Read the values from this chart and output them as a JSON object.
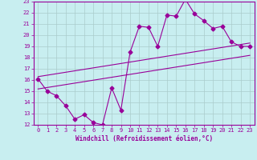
{
  "xlabel": "Windchill (Refroidissement éolien,°C)",
  "bg_color": "#c8eef0",
  "line_color": "#990099",
  "grid_color": "#aacccc",
  "xlim": [
    -0.5,
    23.5
  ],
  "ylim": [
    12,
    23
  ],
  "xticks": [
    0,
    1,
    2,
    3,
    4,
    5,
    6,
    7,
    8,
    9,
    10,
    11,
    12,
    13,
    14,
    15,
    16,
    17,
    18,
    19,
    20,
    21,
    22,
    23
  ],
  "yticks": [
    12,
    13,
    14,
    15,
    16,
    17,
    18,
    19,
    20,
    21,
    22,
    23
  ],
  "main_line": {
    "x": [
      0,
      1,
      2,
      3,
      4,
      5,
      6,
      7,
      8,
      9,
      10,
      11,
      12,
      13,
      14,
      15,
      16,
      17,
      18,
      19,
      20,
      21,
      22,
      23
    ],
    "y": [
      16.1,
      15.0,
      14.6,
      13.7,
      12.5,
      12.9,
      12.2,
      12.0,
      15.3,
      13.3,
      18.5,
      20.8,
      20.7,
      19.0,
      21.8,
      21.7,
      23.2,
      21.9,
      21.3,
      20.6,
      20.8,
      19.4,
      19.0,
      19.0
    ]
  },
  "lower_trend": {
    "x": [
      0,
      23
    ],
    "y": [
      15.2,
      18.2
    ]
  },
  "upper_trend": {
    "x": [
      0,
      23
    ],
    "y": [
      16.3,
      19.3
    ]
  },
  "markersize": 2.5,
  "linewidth": 0.8,
  "tick_fontsize": 5,
  "xlabel_fontsize": 5.5
}
